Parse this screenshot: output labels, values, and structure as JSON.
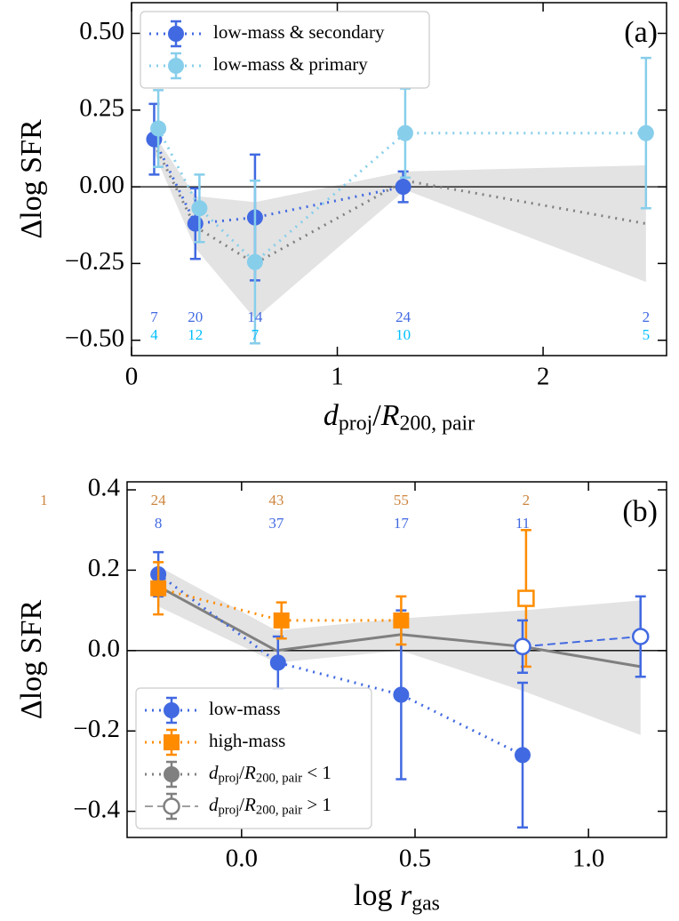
{
  "chart_data": [
    {
      "type": "errorbar",
      "annotation": "(a)",
      "ylabel": "Δlog SFR",
      "xlabel": [
        {
          "text": "d",
          "italic": true
        },
        {
          "text": "proj",
          "sub": true
        },
        {
          "text": "/"
        },
        {
          "text": "R",
          "italic": true
        },
        {
          "text": "200, pair",
          "sub": true
        }
      ],
      "xlim": [
        0,
        2.6
      ],
      "ylim": [
        -0.55,
        0.6
      ],
      "xticks": [
        0,
        1,
        2
      ],
      "yticks": [
        {
          "value": -0.5,
          "label": "−0.50"
        },
        {
          "value": -0.25,
          "label": "−0.25"
        },
        {
          "value": 0,
          "label": "0.00"
        },
        {
          "value": 0.25,
          "label": "0.25"
        },
        {
          "value": 0.5,
          "label": "0.50"
        }
      ],
      "hline": 0,
      "band": {
        "color": "#e3e3e3",
        "x": [
          0.11,
          0.31,
          0.6,
          1.33,
          2.5
        ],
        "lower": [
          0.11,
          -0.2,
          -0.43,
          -0.01,
          -0.31
        ],
        "upper": [
          0.17,
          -0.03,
          -0.05,
          0.05,
          0.07
        ]
      },
      "reference": {
        "color": "#808080",
        "linestyle": "dotted",
        "x": [
          0.11,
          0.31,
          0.6,
          1.33,
          2.5
        ],
        "values": [
          0.14,
          -0.13,
          -0.25,
          0.02,
          -0.12
        ]
      },
      "series": [
        {
          "color": "#4169e1",
          "marker": "circle",
          "filled": true,
          "linestyle": "dotted",
          "x": [
            0.11,
            0.31,
            0.6,
            1.32
          ],
          "values": [
            0.155,
            -0.12,
            -0.1,
            0.0
          ],
          "errors": [
            0.115,
            0.115,
            0.205,
            0.05
          ]
        },
        {
          "color": "#87ceeb",
          "marker": "circle",
          "filled": true,
          "linestyle": "dotted",
          "x": [
            0.13,
            0.33,
            0.6,
            1.33,
            2.5
          ],
          "values": [
            0.19,
            -0.07,
            -0.245,
            0.175,
            0.175
          ],
          "errors": [
            0.125,
            0.11,
            0.265,
            0.145,
            0.245
          ]
        }
      ],
      "counts": [
        {
          "color": "#4169e1",
          "x": [
            0.11,
            0.31,
            0.6,
            1.32,
            2.5
          ],
          "values": [
            7,
            20,
            14,
            24,
            2
          ]
        },
        {
          "color": "#00bfff",
          "x": [
            0.11,
            0.31,
            0.6,
            1.32,
            2.5
          ],
          "values": [
            4,
            12,
            7,
            10,
            5
          ]
        }
      ],
      "legend": {
        "loc": "upper left",
        "entries": [
          {
            "label": [
              {
                "text": "low-mass & secondary"
              }
            ],
            "color": "#4169e1",
            "marker": "circle",
            "filled": true,
            "linestyle": "dotted"
          },
          {
            "label": [
              {
                "text": "low-mass & primary"
              }
            ],
            "color": "#87ceeb",
            "marker": "circle",
            "filled": true,
            "linestyle": "dotted"
          }
        ]
      }
    },
    {
      "type": "errorbar",
      "annotation": "(b)",
      "ylabel": "Δlog SFR",
      "xlabel": [
        {
          "text": "log "
        },
        {
          "text": "r",
          "italic": true
        },
        {
          "text": "gas",
          "sub": true
        }
      ],
      "xlim": [
        -0.33,
        1.225
      ],
      "ylim": [
        -0.465,
        0.42
      ],
      "xticks": [
        {
          "value": 0,
          "label": "0.0"
        },
        0.5,
        {
          "value": 1,
          "label": "1.0"
        }
      ],
      "yticks": [
        {
          "value": -0.4,
          "label": "−0.4"
        },
        {
          "value": -0.2,
          "label": "−0.2"
        },
        {
          "value": 0,
          "label": "0.0"
        },
        0.2,
        0.4
      ],
      "hline": 0,
      "band": {
        "color": "#e3e3e3",
        "x": [
          -0.24,
          0.1,
          0.46,
          0.81,
          1.15
        ],
        "lower": [
          0.11,
          -0.03,
          0.0,
          -0.1,
          -0.21
        ],
        "upper": [
          0.21,
          0.05,
          0.08,
          0.1,
          0.125
        ]
      },
      "reference": {
        "color": "#808080",
        "linestyle": "solid",
        "x": [
          -0.24,
          0.1,
          0.46,
          0.81,
          1.15
        ],
        "values": [
          0.16,
          0.0,
          0.04,
          0.01,
          -0.04
        ]
      },
      "series": [
        {
          "color": "#4169e1",
          "marker": "circle",
          "filled": true,
          "linestyle": "dotted",
          "x": [
            -0.24,
            0.105,
            0.46,
            0.81
          ],
          "values": [
            0.19,
            -0.03,
            -0.11,
            -0.26
          ],
          "errors": [
            0.055,
            0.065,
            0.21,
            0.18
          ]
        },
        {
          "color": "#ff8c00",
          "marker": "square",
          "filled": true,
          "linestyle": "dotted",
          "x": [
            -0.24,
            0.115,
            0.46
          ],
          "values": [
            0.155,
            0.075,
            0.075
          ],
          "errors": [
            0.065,
            0.045,
            0.06
          ]
        },
        {
          "color": "#ff8c00",
          "marker": "square",
          "filled": false,
          "linestyle": "none",
          "x": [
            0.82
          ],
          "values": [
            0.13
          ],
          "errors": [
            0.17
          ]
        },
        {
          "color": "#4169e1",
          "marker": "circle",
          "filled": false,
          "linestyle": "dashed",
          "x": [
            0.81,
            1.15
          ],
          "values": [
            0.01,
            0.035
          ],
          "errors": [
            0.065,
            0.1
          ]
        }
      ],
      "counts": [
        {
          "color": "#cd853f",
          "x": [
            -0.57,
            -0.24,
            0.1,
            0.46,
            0.82
          ],
          "values": [
            1,
            24,
            43,
            55,
            2
          ]
        },
        {
          "color": "#4169e1",
          "x": [
            -0.24,
            0.1,
            0.46,
            0.81
          ],
          "values": [
            8,
            37,
            17,
            11
          ]
        }
      ],
      "legend": {
        "loc": "lower left",
        "entries": [
          {
            "label": [
              {
                "text": "low-mass"
              }
            ],
            "color": "#4169e1",
            "marker": "circle",
            "filled": true,
            "linestyle": "dotted"
          },
          {
            "label": [
              {
                "text": "high-mass"
              }
            ],
            "color": "#ff8c00",
            "marker": "square",
            "filled": true,
            "linestyle": "dotted"
          },
          {
            "label": [
              {
                "text": "d",
                "italic": true
              },
              {
                "text": "proj",
                "sub": true
              },
              {
                "text": "/"
              },
              {
                "text": "R",
                "italic": true
              },
              {
                "text": "200, pair",
                "sub": true
              },
              {
                "text": " < 1"
              }
            ],
            "color": "#808080",
            "marker": "circle",
            "filled": true,
            "linestyle": "dotted"
          },
          {
            "label": [
              {
                "text": "d",
                "italic": true
              },
              {
                "text": "proj",
                "sub": true
              },
              {
                "text": "/"
              },
              {
                "text": "R",
                "italic": true
              },
              {
                "text": "200, pair",
                "sub": true
              },
              {
                "text": " > 1"
              }
            ],
            "color": "#808080",
            "marker": "circle",
            "filled": false,
            "linestyle": "dashed"
          }
        ]
      }
    }
  ]
}
